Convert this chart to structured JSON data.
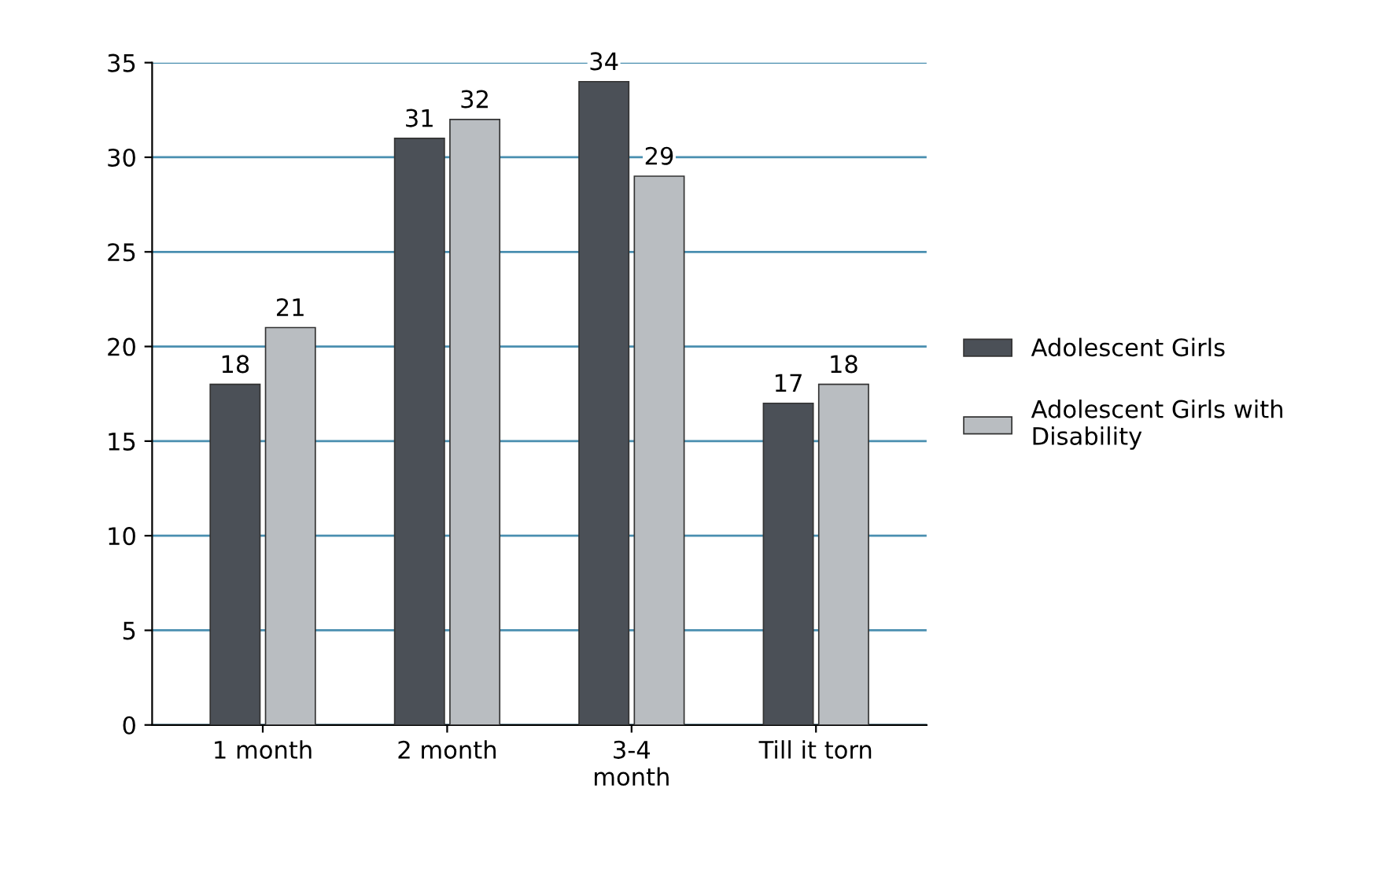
{
  "chart_data": {
    "type": "bar",
    "categories": [
      "1 month",
      "2 month",
      "3-4\nmonth",
      "Till it torn"
    ],
    "series": [
      {
        "name": "Adolescent Girls",
        "color": "#4b5057",
        "values": [
          18,
          31,
          34,
          17
        ]
      },
      {
        "name": "Adolescent Girls with\nDisability",
        "color": "#b9bdc1",
        "values": [
          21,
          32,
          29,
          18
        ]
      }
    ],
    "ylim": [
      0,
      35
    ],
    "yticks": [
      0,
      5,
      10,
      15,
      20,
      25,
      30,
      35
    ],
    "grid": "y",
    "legend": "right",
    "data_labels": true
  }
}
